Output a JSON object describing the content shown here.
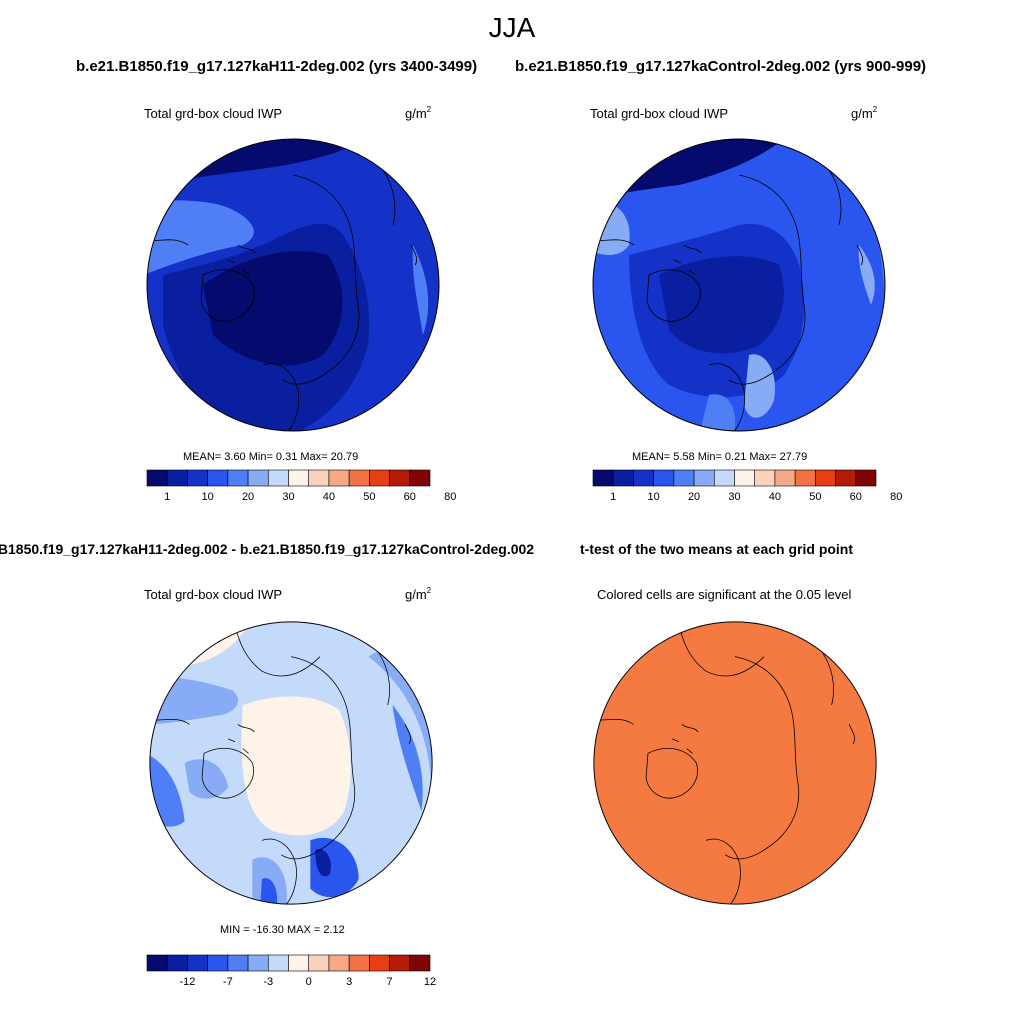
{
  "title": "JJA",
  "panels": [
    {
      "id": "top-left",
      "case_title": "b.e21.B1850.f19_g17.127kaH11-2deg.002 (yrs 3400-3499)",
      "subtitle": "Total grd-box cloud IWP",
      "units_base": "g/m",
      "units_exp": "2",
      "stats": "MEAN=   3.60  Min=   0.31  Max=  20.79"
    },
    {
      "id": "top-right",
      "case_title": "b.e21.B1850.f19_g17.127kaControl-2deg.002 (yrs 900-999)",
      "subtitle": "Total grd-box cloud IWP",
      "units_base": "g/m",
      "units_exp": "2",
      "stats": "MEAN=   5.58  Min=   0.21  Max=  27.79"
    },
    {
      "id": "bottom-left",
      "case_title": ".B1850.f19_g17.127kaH11-2deg.002 - b.e21.B1850.f19_g17.127kaControl-2deg.002",
      "subtitle": "Total grd-box cloud IWP",
      "units_base": "g/m",
      "units_exp": "2",
      "stats": "MIN = -16.30 MAX =   2.12"
    },
    {
      "id": "bottom-right",
      "case_title": "t-test of the two means at each grid point",
      "subtitle": "Colored cells are significant at the 0.05 level"
    }
  ],
  "colorbar_abs": {
    "labels": [
      "1",
      "10",
      "20",
      "30",
      "40",
      "50",
      "60",
      "80"
    ],
    "colors": [
      "#050a6e",
      "#0a1ea0",
      "#1432c8",
      "#2a55ee",
      "#4f7ef5",
      "#88abf5",
      "#c3dafb",
      "#fdf3e8",
      "#fbd3bd",
      "#f7a886",
      "#f47146",
      "#e83e14",
      "#b41c07",
      "#7e0503"
    ]
  },
  "colorbar_diff": {
    "labels": [
      "-12",
      "-7",
      "-3",
      "0",
      "3",
      "7",
      "12"
    ],
    "colors": [
      "#050a6e",
      "#0a1ea0",
      "#1432c8",
      "#2a55ee",
      "#4f7ef5",
      "#88abf5",
      "#c3dafb",
      "#fdf3e8",
      "#fbd3bd",
      "#f7a886",
      "#f47146",
      "#e83e14",
      "#b41c07",
      "#7e0503"
    ]
  },
  "map_colors": {
    "abs_base_left": "#1432c8",
    "abs_base_right": "#2a55ee",
    "abs_dark": "#0a1ea0",
    "abs_darkest": "#050a6e",
    "abs_light": "#4f7ef5",
    "abs_lighter": "#88abf5",
    "diff_base": "#c3dafb",
    "diff_mid": "#88abf5",
    "diff_low": "#4f7ef5",
    "diff_lower": "#2a55ee",
    "diff_darkest": "#0a1ea0",
    "diff_pos": "#fdf3e8",
    "ttest_fill": "#f47a42"
  }
}
